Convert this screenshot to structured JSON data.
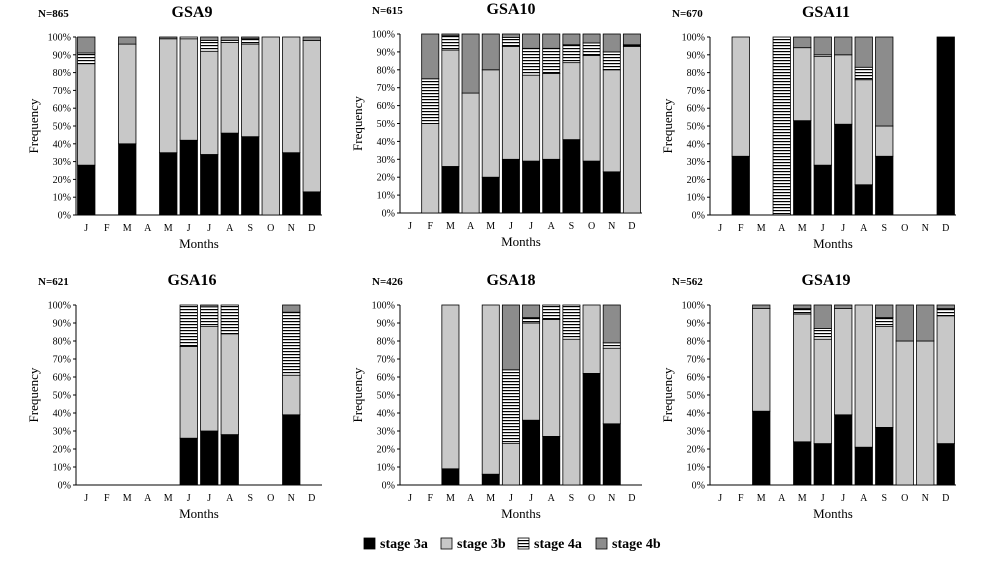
{
  "figure": {
    "legend": [
      {
        "label": "stage 3a",
        "color": "#000000",
        "pattern": "solid"
      },
      {
        "label": "stage 3b",
        "color": "#c8c8c8",
        "pattern": "solid"
      },
      {
        "label": "stage 4a",
        "color": "#ffffff",
        "pattern": "hstripes"
      },
      {
        "label": "stage 4b",
        "color": "#8c8c8c",
        "pattern": "solid"
      }
    ]
  },
  "chart_data": [
    {
      "type": "bar",
      "stacked": true,
      "percent": true,
      "title": "GSA9",
      "n_label": "N=865",
      "xlabel": "Months",
      "ylabel": "Frequency",
      "categories": [
        "J",
        "F",
        "M",
        "A",
        "M",
        "J",
        "J",
        "A",
        "S",
        "O",
        "N",
        "D"
      ],
      "yticks": [
        "0%",
        "10%",
        "20%",
        "30%",
        "40%",
        "50%",
        "60%",
        "70%",
        "80%",
        "90%",
        "100%"
      ],
      "ylim": [
        0,
        100
      ],
      "series": [
        {
          "name": "stage 3a",
          "values": [
            28,
            null,
            40,
            null,
            35,
            42,
            34,
            46,
            44,
            0,
            35,
            13
          ]
        },
        {
          "name": "stage 3b",
          "values": [
            57,
            null,
            56,
            null,
            64,
            57,
            58,
            51,
            52,
            100,
            65,
            85
          ]
        },
        {
          "name": "stage 4a",
          "values": [
            6,
            null,
            0,
            null,
            0,
            1,
            6,
            1,
            3,
            0,
            0,
            0
          ]
        },
        {
          "name": "stage 4b",
          "values": [
            9,
            null,
            4,
            null,
            1,
            0,
            2,
            2,
            1,
            0,
            0,
            2
          ]
        }
      ]
    },
    {
      "type": "bar",
      "stacked": true,
      "percent": true,
      "title": "GSA10",
      "n_label": "N=615",
      "xlabel": "Months",
      "ylabel": "Frequency",
      "categories": [
        "J",
        "F",
        "M",
        "A",
        "M",
        "J",
        "J",
        "A",
        "S",
        "O",
        "N",
        "D"
      ],
      "yticks": [
        "0%",
        "10%",
        "20%",
        "30%",
        "40%",
        "50%",
        "60%",
        "70%",
        "80%",
        "90%",
        "100%"
      ],
      "ylim": [
        0,
        100
      ],
      "series": [
        {
          "name": "stage 3a",
          "values": [
            null,
            0,
            26,
            0,
            20,
            30,
            29,
            30,
            41,
            29,
            23,
            0
          ]
        },
        {
          "name": "stage 3b",
          "values": [
            null,
            50,
            65,
            67,
            60,
            63,
            48,
            48,
            43,
            59,
            57,
            93
          ]
        },
        {
          "name": "stage 4a",
          "values": [
            null,
            25,
            8,
            0,
            0,
            5,
            15,
            14,
            10,
            7,
            10,
            1
          ]
        },
        {
          "name": "stage 4b",
          "values": [
            null,
            25,
            1,
            33,
            20,
            2,
            8,
            8,
            6,
            5,
            10,
            6
          ]
        }
      ]
    },
    {
      "type": "bar",
      "stacked": true,
      "percent": true,
      "title": "GSA11",
      "n_label": "N=670",
      "xlabel": "Months",
      "ylabel": "Frequency",
      "categories": [
        "J",
        "F",
        "M",
        "A",
        "M",
        "J",
        "J",
        "A",
        "S",
        "O",
        "N",
        "D"
      ],
      "yticks": [
        "0%",
        "10%",
        "20%",
        "30%",
        "40%",
        "50%",
        "60%",
        "70%",
        "80%",
        "90%",
        "100%"
      ],
      "ylim": [
        0,
        100
      ],
      "series": [
        {
          "name": "stage 3a",
          "values": [
            null,
            33,
            null,
            0,
            53,
            28,
            51,
            17,
            33,
            null,
            null,
            100
          ]
        },
        {
          "name": "stage 3b",
          "values": [
            null,
            67,
            null,
            0,
            41,
            61,
            39,
            59,
            17,
            null,
            null,
            0
          ]
        },
        {
          "name": "stage 4a",
          "values": [
            null,
            0,
            null,
            100,
            0,
            1,
            0,
            7,
            0,
            null,
            null,
            0
          ]
        },
        {
          "name": "stage 4b",
          "values": [
            null,
            0,
            null,
            0,
            6,
            10,
            10,
            17,
            50,
            null,
            null,
            0
          ]
        }
      ]
    },
    {
      "type": "bar",
      "stacked": true,
      "percent": true,
      "title": "GSA16",
      "n_label": "N=621",
      "xlabel": "Months",
      "ylabel": "Frequency",
      "categories": [
        "J",
        "F",
        "M",
        "A",
        "M",
        "J",
        "J",
        "A",
        "S",
        "O",
        "N",
        "D"
      ],
      "yticks": [
        "0%",
        "10%",
        "20%",
        "30%",
        "40%",
        "50%",
        "60%",
        "70%",
        "80%",
        "90%",
        "100%"
      ],
      "ylim": [
        0,
        100
      ],
      "series": [
        {
          "name": "stage 3a",
          "values": [
            null,
            null,
            null,
            null,
            null,
            26,
            30,
            28,
            null,
            null,
            39,
            null
          ]
        },
        {
          "name": "stage 3b",
          "values": [
            null,
            null,
            null,
            null,
            null,
            51,
            58,
            56,
            null,
            null,
            22,
            null
          ]
        },
        {
          "name": "stage 4a",
          "values": [
            null,
            null,
            null,
            null,
            null,
            23,
            11,
            16,
            null,
            null,
            35,
            null
          ]
        },
        {
          "name": "stage 4b",
          "values": [
            null,
            null,
            null,
            null,
            null,
            0,
            1,
            0,
            null,
            null,
            4,
            null
          ]
        }
      ]
    },
    {
      "type": "bar",
      "stacked": true,
      "percent": true,
      "title": "GSA18",
      "n_label": "N=426",
      "xlabel": "Months",
      "ylabel": "Frequency",
      "categories": [
        "J",
        "F",
        "M",
        "A",
        "M",
        "J",
        "J",
        "A",
        "S",
        "O",
        "N",
        "D"
      ],
      "yticks": [
        "0%",
        "10%",
        "20%",
        "30%",
        "40%",
        "50%",
        "60%",
        "70%",
        "80%",
        "90%",
        "100%"
      ],
      "ylim": [
        0,
        100
      ],
      "series": [
        {
          "name": "stage 3a",
          "values": [
            null,
            null,
            9,
            null,
            6,
            0,
            36,
            27,
            0,
            62,
            34,
            null
          ]
        },
        {
          "name": "stage 3b",
          "values": [
            null,
            null,
            91,
            null,
            94,
            23,
            54,
            65,
            81,
            38,
            42,
            null
          ]
        },
        {
          "name": "stage 4a",
          "values": [
            null,
            null,
            0,
            null,
            0,
            41,
            3,
            8,
            19,
            0,
            3,
            null
          ]
        },
        {
          "name": "stage 4b",
          "values": [
            null,
            null,
            0,
            null,
            0,
            36,
            7,
            0,
            0,
            0,
            21,
            null
          ]
        }
      ]
    },
    {
      "type": "bar",
      "stacked": true,
      "percent": true,
      "title": "GSA19",
      "n_label": "N=562",
      "xlabel": "Months",
      "ylabel": "Frequency",
      "categories": [
        "J",
        "F",
        "M",
        "A",
        "M",
        "J",
        "J",
        "A",
        "S",
        "O",
        "N",
        "D"
      ],
      "yticks": [
        "0%",
        "10%",
        "20%",
        "30%",
        "40%",
        "50%",
        "60%",
        "70%",
        "80%",
        "90%",
        "100%"
      ],
      "ylim": [
        0,
        100
      ],
      "series": [
        {
          "name": "stage 3a",
          "values": [
            null,
            null,
            41,
            null,
            24,
            23,
            39,
            21,
            32,
            0,
            0,
            23
          ]
        },
        {
          "name": "stage 3b",
          "values": [
            null,
            null,
            57,
            null,
            71,
            58,
            59,
            79,
            56,
            80,
            80,
            71
          ]
        },
        {
          "name": "stage 4a",
          "values": [
            null,
            null,
            0,
            null,
            3,
            6,
            0,
            0,
            5,
            0,
            0,
            4
          ]
        },
        {
          "name": "stage 4b",
          "values": [
            null,
            null,
            2,
            null,
            2,
            13,
            2,
            0,
            7,
            20,
            20,
            2
          ]
        }
      ]
    }
  ]
}
